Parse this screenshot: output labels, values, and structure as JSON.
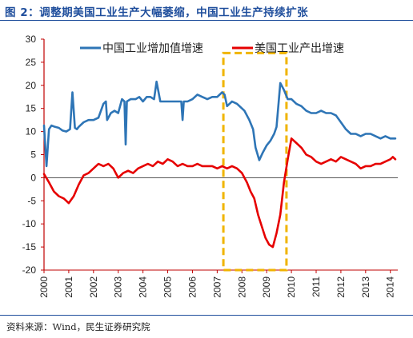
{
  "page": {
    "title": "图 2：调整期美国工业生产大幅萎缩，中国工业生产持续扩张",
    "source": "资料来源：Wind，民生证券研究院"
  },
  "chart_data": {
    "type": "line",
    "title": "图 2：调整期美国工业生产大幅萎缩，中国工业生产持续扩张",
    "xlabel": "",
    "ylabel": "",
    "ylim": [
      -20,
      30
    ],
    "yticks": [
      -20,
      -15,
      -10,
      -5,
      0,
      5,
      10,
      15,
      20,
      25,
      30
    ],
    "xlim": [
      2000,
      2014.3
    ],
    "xticks": [
      "2000",
      "2001",
      "2002",
      "2003",
      "2004",
      "2005",
      "2006",
      "2007",
      "2008",
      "2009",
      "2010",
      "2011",
      "2012",
      "2013",
      "2014"
    ],
    "grid": false,
    "legend": "top",
    "annotation": {
      "type": "dashed-box",
      "color": "#f0b400",
      "x_range": [
        2007.25,
        2009.8
      ],
      "y_range": [
        -20,
        27
      ]
    },
    "series": [
      {
        "name": "中国工业增加值增速",
        "color": "#2e75b6",
        "x": [
          2000.0,
          2000.1,
          2000.2,
          2000.3,
          2000.45,
          2000.6,
          2000.75,
          2000.9,
          2001.05,
          2001.15,
          2001.25,
          2001.33,
          2001.4,
          2001.6,
          2001.8,
          2002.0,
          2002.2,
          2002.4,
          2002.5,
          2002.55,
          2002.7,
          2002.85,
          2003.0,
          2003.15,
          2003.25,
          2003.3,
          2003.35,
          2003.5,
          2003.7,
          2003.85,
          2004.0,
          2004.15,
          2004.3,
          2004.45,
          2004.55,
          2004.7,
          2004.85,
          2005.0,
          2005.2,
          2005.4,
          2005.55,
          2005.6,
          2005.65,
          2005.8,
          2006.0,
          2006.2,
          2006.4,
          2006.6,
          2006.8,
          2007.0,
          2007.2,
          2007.3,
          2007.4,
          2007.6,
          2007.8,
          2008.0,
          2008.1,
          2008.3,
          2008.45,
          2008.55,
          2008.7,
          2008.85,
          2009.0,
          2009.15,
          2009.3,
          2009.4,
          2009.55,
          2009.7,
          2009.85,
          2010.0,
          2010.2,
          2010.4,
          2010.6,
          2010.8,
          2011.0,
          2011.2,
          2011.4,
          2011.6,
          2011.8,
          2012.0,
          2012.2,
          2012.4,
          2012.6,
          2012.8,
          2013.0,
          2013.2,
          2013.4,
          2013.6,
          2013.8,
          2014.0,
          2014.2
        ],
        "values": [
          11.3,
          2.5,
          10.5,
          11.3,
          11.0,
          10.8,
          10.2,
          10.0,
          10.5,
          18.5,
          10.8,
          10.5,
          11.0,
          12.0,
          12.5,
          12.5,
          13.0,
          16.0,
          16.5,
          12.5,
          14.0,
          14.5,
          14.0,
          17.0,
          16.5,
          7.2,
          16.5,
          17.0,
          17.0,
          17.5,
          16.5,
          17.5,
          17.5,
          17.0,
          20.8,
          16.5,
          16.5,
          16.5,
          16.5,
          16.5,
          16.5,
          12.5,
          16.5,
          16.5,
          17.0,
          18.0,
          17.5,
          17.0,
          17.5,
          17.5,
          18.5,
          18.0,
          15.5,
          16.5,
          16.0,
          15.0,
          14.5,
          12.5,
          10.5,
          6.5,
          3.8,
          5.5,
          7.0,
          8.0,
          9.5,
          11.0,
          20.5,
          19.0,
          17.0,
          17.0,
          16.0,
          15.5,
          14.5,
          14.0,
          14.0,
          14.5,
          14.0,
          14.0,
          13.5,
          12.0,
          10.5,
          9.5,
          9.5,
          9.0,
          9.5,
          9.5,
          9.0,
          8.5,
          9.0,
          8.5,
          8.5
        ]
      },
      {
        "name": "美国工业产出增速",
        "color": "#e60000",
        "x": [
          2000.0,
          2000.2,
          2000.4,
          2000.6,
          2000.8,
          2001.0,
          2001.2,
          2001.4,
          2001.6,
          2001.8,
          2002.0,
          2002.2,
          2002.4,
          2002.6,
          2002.8,
          2003.0,
          2003.2,
          2003.4,
          2003.6,
          2003.8,
          2004.0,
          2004.2,
          2004.4,
          2004.6,
          2004.8,
          2005.0,
          2005.2,
          2005.4,
          2005.6,
          2005.8,
          2006.0,
          2006.2,
          2006.4,
          2006.6,
          2006.8,
          2007.0,
          2007.2,
          2007.4,
          2007.6,
          2007.8,
          2008.0,
          2008.2,
          2008.35,
          2008.5,
          2008.65,
          2008.8,
          2008.95,
          2009.1,
          2009.25,
          2009.4,
          2009.55,
          2009.7,
          2009.85,
          2010.0,
          2010.2,
          2010.4,
          2010.6,
          2010.8,
          2011.0,
          2011.2,
          2011.4,
          2011.6,
          2011.8,
          2012.0,
          2012.2,
          2012.4,
          2012.6,
          2012.8,
          2013.0,
          2013.2,
          2013.4,
          2013.6,
          2013.8,
          2014.0,
          2014.1,
          2014.2
        ],
        "values": [
          0.8,
          -1.0,
          -3.0,
          -4.0,
          -4.5,
          -5.5,
          -4.0,
          -1.5,
          0.5,
          1.0,
          2.0,
          3.0,
          2.5,
          3.0,
          2.0,
          0.0,
          1.0,
          1.5,
          1.0,
          2.0,
          2.5,
          3.0,
          2.5,
          3.5,
          3.0,
          4.0,
          3.5,
          2.5,
          3.0,
          2.5,
          2.5,
          3.0,
          2.5,
          2.5,
          2.5,
          2.0,
          2.5,
          2.0,
          2.5,
          2.0,
          1.0,
          -1.0,
          -3.0,
          -4.5,
          -8.0,
          -10.5,
          -13.0,
          -14.5,
          -15.0,
          -12.0,
          -8.0,
          -1.0,
          4.0,
          8.5,
          7.5,
          6.5,
          5.0,
          4.5,
          3.5,
          3.0,
          3.5,
          4.0,
          3.5,
          4.5,
          4.0,
          3.5,
          3.0,
          2.0,
          2.5,
          2.5,
          3.0,
          3.0,
          3.5,
          4.0,
          4.5,
          4.0
        ]
      }
    ]
  }
}
